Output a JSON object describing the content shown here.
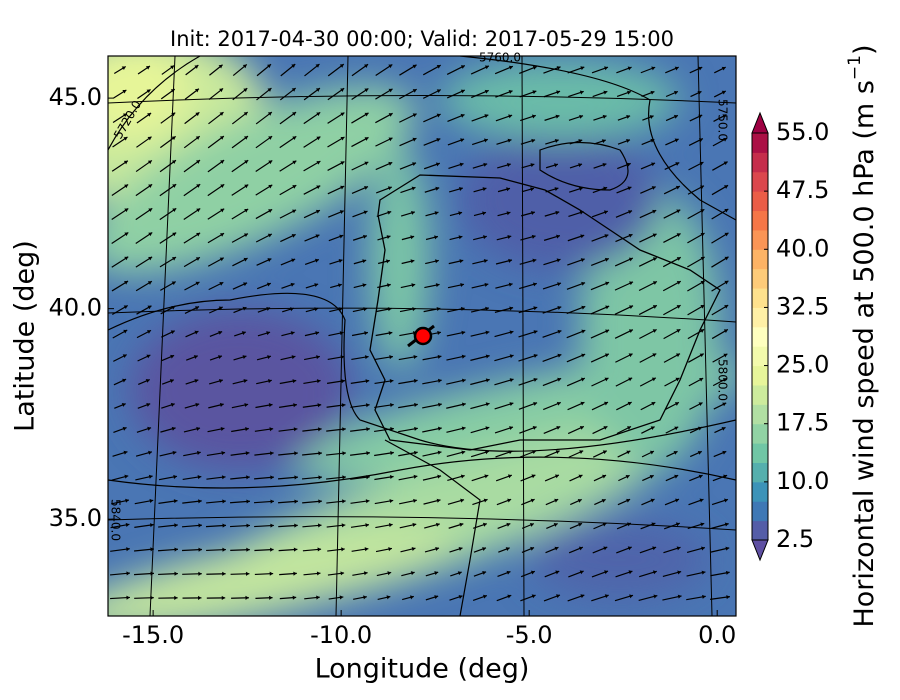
{
  "title": "Init: 2017-04-30 00:00; Valid: 2017-05-29 15:00",
  "x_axis": {
    "label": "Longitude (deg)",
    "lim": [
      -16.2,
      0.5
    ],
    "ticks": [
      {
        "value": -15,
        "label": "-15.0"
      },
      {
        "value": -10,
        "label": "-10.0"
      },
      {
        "value": -5,
        "label": "-5.0"
      },
      {
        "value": 0,
        "label": "0.0"
      }
    ]
  },
  "y_axis": {
    "label": "Latitude (deg)",
    "lim": [
      32.7,
      46.0
    ],
    "ticks": [
      {
        "value": 35,
        "label": "35.0"
      },
      {
        "value": 40,
        "label": "40.0"
      },
      {
        "value": 45,
        "label": "45.0"
      }
    ]
  },
  "colorbar": {
    "label": "Horizontal wind speed at 500.0 hPa (m s",
    "label_exponent": "−1",
    "label_close": ")",
    "range": [
      2.5,
      55
    ],
    "step": 2.5,
    "colors": [
      "#5e4fa2",
      "#3288bd",
      "#66c2a5",
      "#abdda4",
      "#e6f598",
      "#ffffbf",
      "#fee08b",
      "#fdae61",
      "#f46d43",
      "#d53e4f",
      "#9e0142"
    ],
    "ticks": [
      {
        "value": 2.5,
        "label": "2.5"
      },
      {
        "value": 10,
        "label": "10.0"
      },
      {
        "value": 17.5,
        "label": "17.5"
      },
      {
        "value": 25,
        "label": "25.0"
      },
      {
        "value": 32.5,
        "label": "32.5"
      },
      {
        "value": 40,
        "label": "40.0"
      },
      {
        "value": 47.5,
        "label": "47.5"
      },
      {
        "value": 55,
        "label": "55.0"
      }
    ]
  },
  "contour_labels": [
    "5760.0",
    "5720.0",
    "5750.0",
    "5800.0",
    "5840.0"
  ]
}
